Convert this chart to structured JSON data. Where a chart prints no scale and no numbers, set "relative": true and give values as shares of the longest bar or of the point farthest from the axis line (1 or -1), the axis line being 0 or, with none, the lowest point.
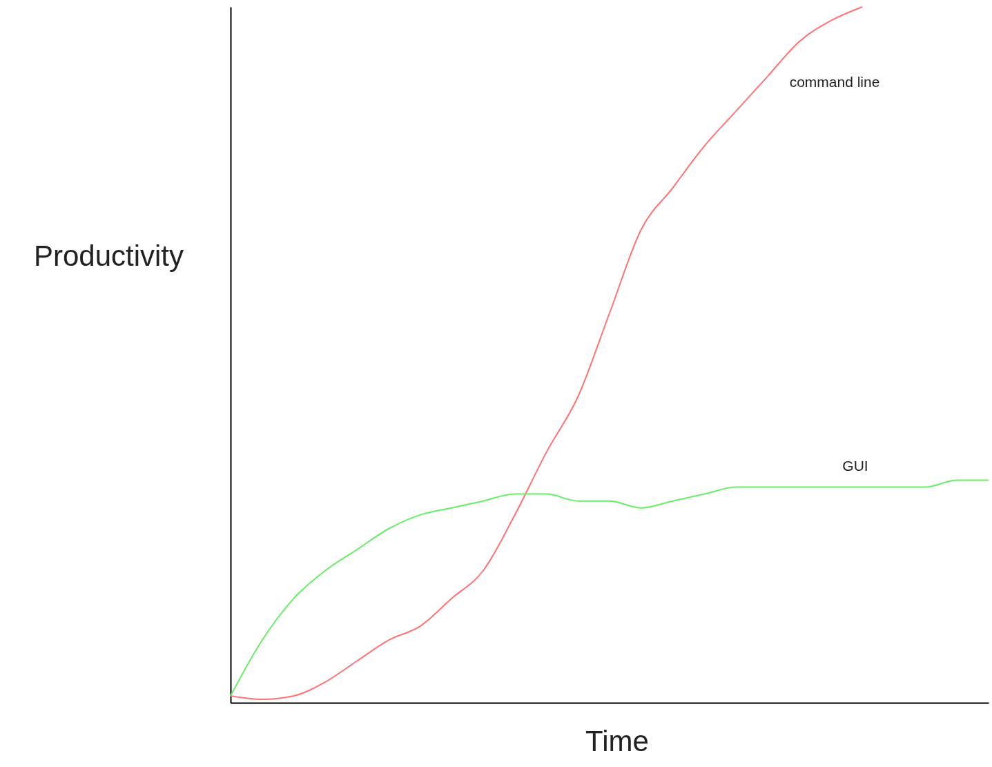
{
  "chart_data": {
    "type": "line",
    "relative": true,
    "xlabel": "Time",
    "ylabel": "Productivity",
    "tick_labels": false,
    "grid": false,
    "legend": false,
    "marker": "none",
    "line_style": "solid",
    "categories": [
      null,
      null,
      null,
      null,
      null,
      null,
      null,
      null,
      null,
      null,
      null,
      null,
      null,
      null,
      null,
      null,
      null,
      null,
      null,
      null,
      null,
      null,
      null,
      null,
      null
    ],
    "series": [
      {
        "name": "command line",
        "color": "#ff7373",
        "values": [
          0.01,
          0.005,
          0.01,
          0.03,
          0.06,
          0.09,
          0.11,
          0.15,
          0.19,
          0.27,
          0.36,
          0.44,
          0.56,
          0.68,
          0.74,
          0.8,
          0.85,
          0.9,
          0.95,
          0.98,
          1.0,
          null,
          null,
          null,
          null
        ]
      },
      {
        "name": "GUI",
        "color": "#66ee66",
        "values": [
          0.01,
          0.09,
          0.15,
          0.19,
          0.22,
          0.25,
          0.27,
          0.28,
          0.29,
          0.3,
          0.3,
          0.29,
          0.29,
          0.28,
          0.29,
          0.3,
          0.31,
          0.31,
          0.31,
          0.31,
          0.31,
          0.31,
          0.31,
          0.32,
          0.32
        ]
      }
    ]
  }
}
